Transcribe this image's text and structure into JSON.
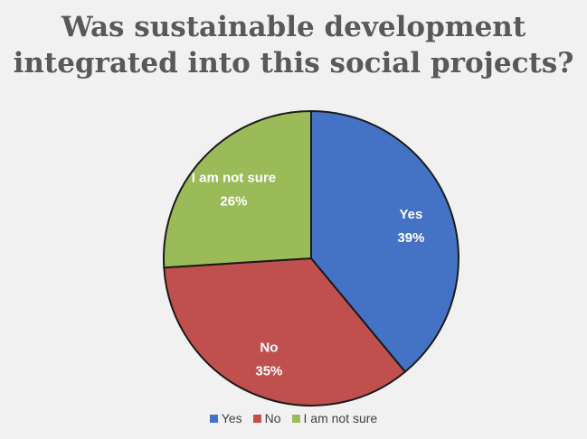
{
  "chart_data": {
    "type": "pie",
    "title_lines": [
      "Was sustainable development",
      "integrated into this social projects?"
    ],
    "slices": [
      {
        "label": "Yes",
        "value": 39,
        "display_value": "39%",
        "color": "#4472c4"
      },
      {
        "label": "No",
        "value": 35,
        "display_value": "35%",
        "color": "#c0504d"
      },
      {
        "label": "I am not sure",
        "value": 26,
        "display_value": "26%",
        "color": "#9bbb59"
      }
    ],
    "start_angle_deg": 0,
    "direction": "clockwise",
    "legend": {
      "position": "bottom",
      "items": [
        "Yes",
        "No",
        "I am not sure"
      ]
    }
  }
}
